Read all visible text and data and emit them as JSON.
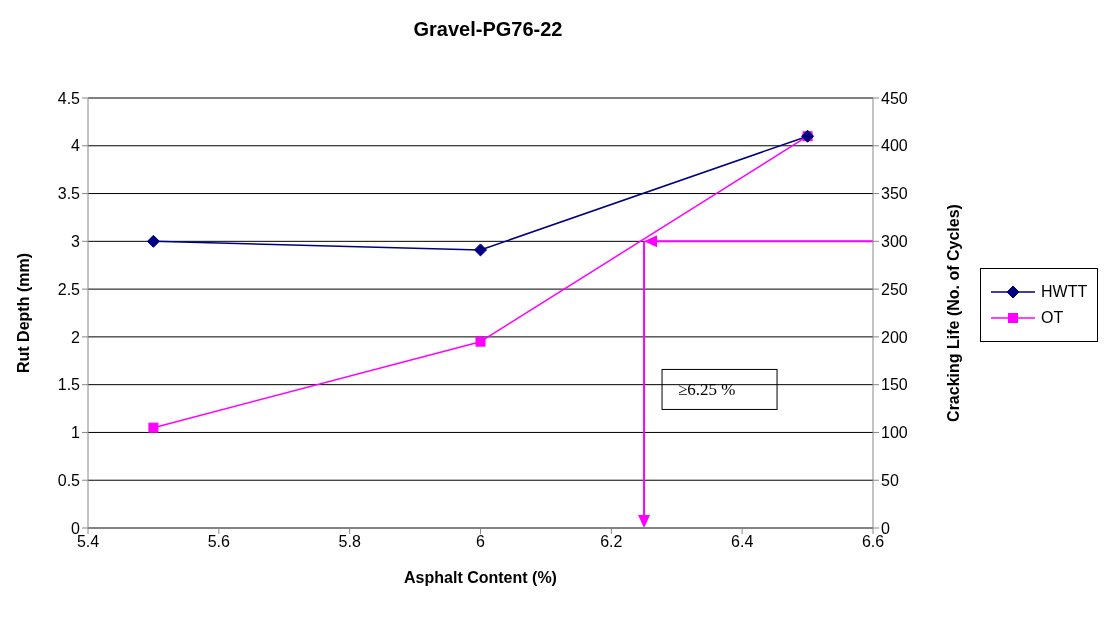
{
  "chart_data": {
    "type": "line",
    "title": "Gravel-PG76-22",
    "xlabel": "Asphalt Content (%)",
    "ylabel": "Rut Depth (mm)",
    "y2label": "Cracking Life (No. of Cycles)",
    "x": [
      5.5,
      6,
      6.5
    ],
    "series": [
      {
        "name": "HWTT",
        "color": "#000080",
        "marker": "diamond",
        "values": [
          3.0,
          2.91,
          4.1
        ]
      },
      {
        "name": "OT",
        "color": "#ff00ff",
        "marker": "square",
        "axis": "y2",
        "values": [
          105,
          195,
          410
        ]
      }
    ],
    "xlim": [
      5.4,
      6.6
    ],
    "xticks": [
      5.4,
      5.6,
      5.8,
      6,
      6.2,
      6.4,
      6.6
    ],
    "ylim": [
      0,
      4.5
    ],
    "yticks": [
      0,
      0.5,
      1,
      1.5,
      2,
      2.5,
      3,
      3.5,
      4,
      4.5
    ],
    "y2lim": [
      0,
      450
    ],
    "y2ticks": [
      0,
      50,
      100,
      150,
      200,
      250,
      300,
      350,
      400,
      450
    ],
    "ref_lines": [
      {
        "axis": "y2",
        "value": 300,
        "color": "#ff00ff"
      },
      {
        "axis": "x",
        "value": 6.25,
        "color": "#ff00ff"
      }
    ],
    "annotations": [
      {
        "text": "≥6.25 %",
        "x": 6.25,
        "y": 1.45
      }
    ],
    "grid": "y",
    "legend": "right",
    "line_style": "solid"
  }
}
